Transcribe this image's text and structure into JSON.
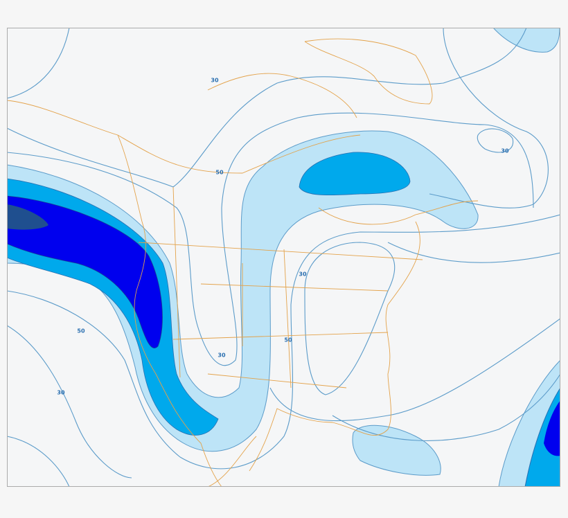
{
  "contour_labels": [
    "30",
    "50",
    "30",
    "30",
    "50",
    "50",
    "30",
    "30"
  ]
}
